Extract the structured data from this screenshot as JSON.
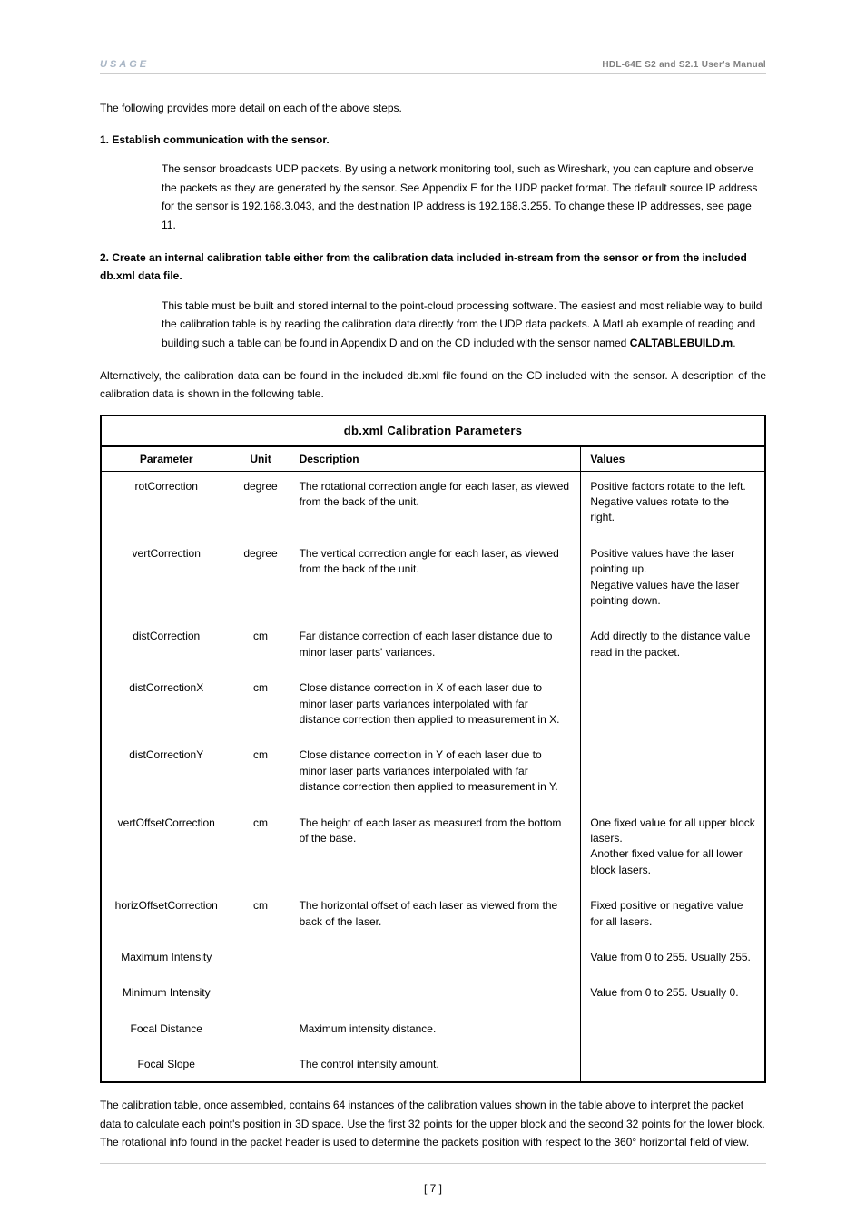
{
  "header": {
    "section": "USAGE",
    "manual": "HDL-64E S2 and S2.1 User's Manual"
  },
  "intro": "The following provides more detail on each of the above steps.",
  "step1": {
    "heading": "1. Establish communication with the sensor.",
    "body": "The sensor broadcasts UDP packets. By using a network monitoring tool, such as Wireshark, you can capture and observe the packets as they are generated by the sensor. See Appendix E for the UDP packet format. The default source IP address for the sensor is 192.168.3.043, and the destination IP address is 192.168.3.255. To change these IP addresses, see page 11."
  },
  "step2": {
    "heading": "2. Create an internal calibration table either from the calibration data included in-stream from the sensor or from the included db.xml data file.",
    "body_prefix": "This table must be built and stored internal to the point-cloud processing software. The easiest and most reliable way to build the calibration table is by reading the calibration data directly from the UDP data packets. A MatLab example of reading and building such a table can be found in Appendix D and on the CD included with the sensor named ",
    "body_strong": "CALTABLEBUILD.m",
    "body_suffix": "."
  },
  "alt_paragraph": "Alternatively, the calibration data can be found in the included db.xml file found on the CD included with the sensor. A description of the calibration data is shown in the following table.",
  "table": {
    "caption": "db.xml Calibration Parameters",
    "headers": {
      "param": "Parameter",
      "unit": "Unit",
      "desc": "Description",
      "values": "Values"
    },
    "rows": [
      {
        "param": "rotCorrection",
        "unit": "degree",
        "desc": "The rotational correction angle for each laser, as viewed from the back of the unit.",
        "values": "Positive factors rotate to the left. Negative values rotate to the right."
      },
      {
        "param": "vertCorrection",
        "unit": "degree",
        "desc": "The vertical correction angle for each laser, as viewed from the back of the unit.",
        "values": "Positive values have the laser pointing up.\nNegative values have the laser pointing down."
      },
      {
        "param": "distCorrection",
        "unit": "cm",
        "desc": "Far distance correction of each laser distance due to minor laser parts' variances.",
        "values": "Add directly to the distance value read in the packet."
      },
      {
        "param": "distCorrectionX",
        "unit": "cm",
        "desc": "Close distance correction in X of each laser due to minor laser parts variances interpolated with far distance correction then applied to measurement in X.",
        "values": ""
      },
      {
        "param": "distCorrectionY",
        "unit": "cm",
        "desc": "Close distance correction in Y of each laser due to minor laser parts variances interpolated with far distance correction then applied to measurement in Y.",
        "values": ""
      },
      {
        "param": "vertOffsetCorrection",
        "unit": "cm",
        "desc": "The height of each laser as measured from the bottom of the base.",
        "values": "One fixed value for all upper block lasers.\nAnother fixed value for all lower block lasers."
      },
      {
        "param": "horizOffsetCorrection",
        "unit": "cm",
        "desc": "The horizontal offset of each laser as viewed from the back of the laser.",
        "values": "Fixed positive or negative value for all lasers."
      },
      {
        "param": "Maximum Intensity",
        "unit": "",
        "desc": "",
        "values": "Value from 0 to 255. Usually 255."
      },
      {
        "param": "Minimum Intensity",
        "unit": "",
        "desc": "",
        "values": "Value from 0 to 255. Usually 0."
      },
      {
        "param": "Focal Distance",
        "unit": "",
        "desc": "Maximum intensity distance.",
        "values": ""
      },
      {
        "param": "Focal Slope",
        "unit": "",
        "desc": "The control intensity amount.",
        "values": ""
      }
    ]
  },
  "footer_paragraph": "The calibration table, once assembled, contains 64 instances of the calibration values shown in the table above to interpret the packet data to calculate each point's position in 3D space. Use the first 32 points for the upper block and the second 32 points for the lower block. The rotational info found in the packet header is used to determine the packets position with respect to the 360° horizontal field of view.",
  "page_number": "[ 7 ]"
}
